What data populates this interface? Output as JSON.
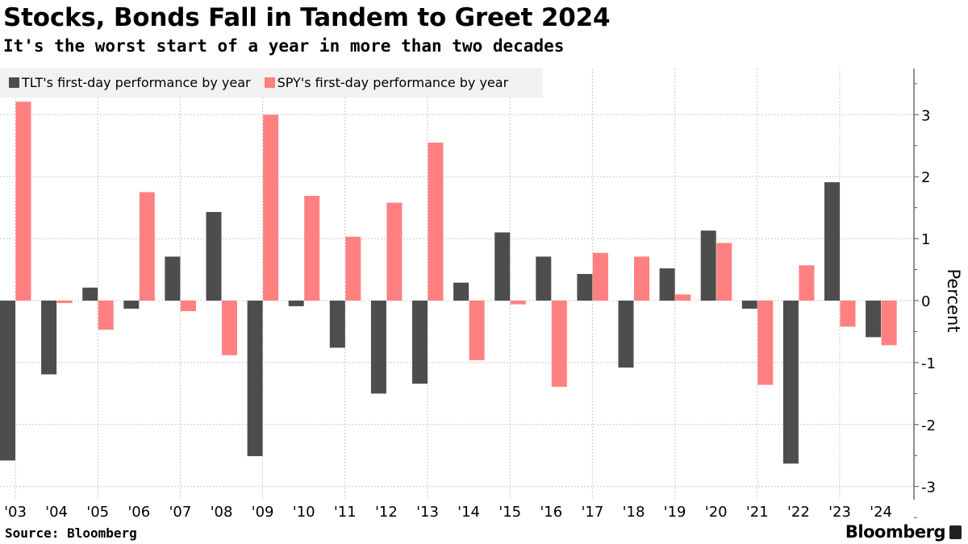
{
  "header": {
    "title": "Stocks, Bonds Fall in Tandem to Greet 2024",
    "subtitle": "It's the worst start of a year in more than two decades"
  },
  "footer": {
    "source": "Source: Bloomberg",
    "logo": "Bloomberg"
  },
  "chart_data": {
    "type": "bar",
    "title": "Stocks, Bonds Fall in Tandem to Greet 2024",
    "subtitle": "It's the worst start of a year in more than two decades",
    "xlabel": "",
    "ylabel": "Percent",
    "ylim": [
      -3.3,
      3.8
    ],
    "yticks": [
      3,
      2,
      1,
      0,
      -1,
      -2,
      -3
    ],
    "grid": true,
    "legend_placement": "top-left",
    "categories": [
      "'03",
      "'04",
      "'05",
      "'06",
      "'07",
      "'08",
      "'09",
      "'10",
      "'11",
      "'12",
      "'13",
      "'14",
      "'15",
      "'16",
      "'17",
      "'18",
      "'19",
      "'20",
      "'21",
      "'22",
      "'23",
      "'24"
    ],
    "series": [
      {
        "name": "TLT's first-day performance by year",
        "color": "#4d4d4d",
        "values": [
          -2.58,
          -1.19,
          0.21,
          -0.13,
          0.71,
          1.43,
          -2.51,
          -0.09,
          -0.76,
          -1.5,
          -1.34,
          0.29,
          1.1,
          0.71,
          0.43,
          -1.08,
          0.52,
          1.13,
          -0.13,
          -2.63,
          1.91,
          -0.59
        ]
      },
      {
        "name": "SPY's first-day performance by year",
        "color": "#ff8080",
        "values": [
          3.21,
          -0.04,
          -0.47,
          1.75,
          -0.17,
          -0.88,
          3.0,
          1.69,
          1.03,
          1.58,
          2.55,
          -0.96,
          -0.06,
          -1.39,
          0.77,
          0.71,
          0.1,
          0.93,
          -1.36,
          0.57,
          -0.42,
          -0.72
        ]
      }
    ]
  }
}
